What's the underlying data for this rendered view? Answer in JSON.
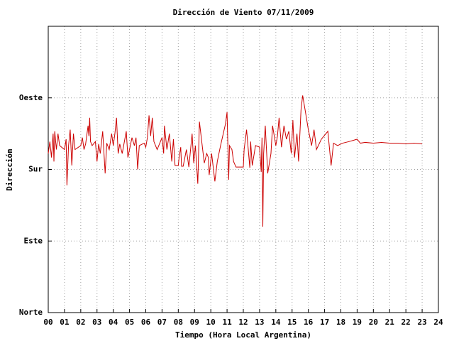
{
  "chart_data": {
    "type": "line",
    "title": "Dirección de Viento 07/11/2009",
    "x_label": "Tiempo (Hora Local Argentina)",
    "y_label": "Dirección",
    "color": "#cc0000",
    "grid": true,
    "xlim": [
      0,
      24
    ],
    "xticks": [
      {
        "value": 0,
        "label": "00"
      },
      {
        "value": 1,
        "label": "01"
      },
      {
        "value": 2,
        "label": "02"
      },
      {
        "value": 3,
        "label": "03"
      },
      {
        "value": 4,
        "label": "04"
      },
      {
        "value": 5,
        "label": "05"
      },
      {
        "value": 6,
        "label": "06"
      },
      {
        "value": 7,
        "label": "07"
      },
      {
        "value": 8,
        "label": "08"
      },
      {
        "value": 9,
        "label": "09"
      },
      10,
      11,
      12,
      13,
      14,
      15,
      16,
      17,
      18,
      19,
      20,
      21,
      22,
      23,
      24
    ],
    "ylim": [
      0,
      360
    ],
    "yticks": [
      {
        "value": 0,
        "label": "Norte"
      },
      {
        "value": 90,
        "label": "Este"
      },
      {
        "value": 180,
        "label": "Sur"
      },
      {
        "value": 270,
        "label": "Oeste"
      }
    ],
    "x": [
      0.0,
      0.1,
      0.2,
      0.3,
      0.35,
      0.4,
      0.5,
      0.6,
      0.7,
      1.0,
      1.1,
      1.15,
      1.25,
      1.35,
      1.45,
      1.55,
      1.65,
      2.0,
      2.1,
      2.2,
      2.3,
      2.45,
      2.5,
      2.55,
      2.6,
      2.7,
      2.9,
      3.0,
      3.1,
      3.2,
      3.35,
      3.5,
      3.6,
      3.75,
      3.9,
      4.0,
      4.1,
      4.2,
      4.3,
      4.4,
      4.55,
      4.8,
      4.9,
      5.0,
      5.15,
      5.3,
      5.4,
      5.5,
      5.6,
      5.9,
      6.0,
      6.1,
      6.2,
      6.3,
      6.4,
      6.5,
      6.7,
      6.9,
      7.0,
      7.1,
      7.15,
      7.3,
      7.45,
      7.6,
      7.7,
      7.8,
      8.0,
      8.05,
      8.15,
      8.2,
      8.3,
      8.5,
      8.65,
      8.85,
      8.95,
      9.05,
      9.2,
      9.3,
      9.5,
      9.6,
      9.75,
      9.85,
      9.9,
      10.05,
      10.25,
      10.4,
      10.6,
      10.9,
      11.0,
      11.1,
      11.15,
      11.3,
      11.4,
      11.55,
      11.8,
      12.0,
      12.05,
      12.2,
      12.4,
      12.45,
      12.55,
      12.75,
      13.0,
      13.1,
      13.15,
      13.2,
      13.25,
      13.35,
      13.5,
      13.7,
      13.8,
      14.0,
      14.1,
      14.2,
      14.35,
      14.5,
      14.65,
      14.8,
      14.95,
      15.05,
      15.15,
      15.3,
      15.4,
      15.55,
      15.65,
      15.8,
      16.0,
      16.2,
      16.35,
      16.5,
      16.8,
      17.2,
      17.4,
      17.55,
      17.8,
      18.1,
      18.5,
      19.0,
      19.2,
      19.5,
      20.0,
      20.5,
      21.0,
      21.5,
      22.0,
      22.5,
      23.0
    ],
    "values": [
      200,
      215,
      195,
      225,
      190,
      228,
      205,
      225,
      210,
      205,
      218,
      160,
      210,
      230,
      185,
      225,
      205,
      210,
      220,
      205,
      212,
      235,
      222,
      245,
      215,
      210,
      215,
      190,
      212,
      200,
      228,
      175,
      213,
      205,
      225,
      210,
      225,
      245,
      200,
      212,
      200,
      228,
      195,
      205,
      220,
      210,
      220,
      180,
      210,
      213,
      208,
      220,
      248,
      222,
      245,
      215,
      205,
      215,
      220,
      200,
      235,
      205,
      225,
      190,
      218,
      185,
      185,
      195,
      208,
      184,
      184,
      205,
      183,
      225,
      188,
      210,
      162,
      240,
      205,
      188,
      200,
      195,
      173,
      200,
      165,
      190,
      210,
      237,
      252,
      167,
      210,
      205,
      190,
      183,
      183,
      183,
      205,
      230,
      182,
      215,
      185,
      210,
      208,
      177,
      220,
      108,
      200,
      235,
      175,
      200,
      235,
      210,
      222,
      245,
      208,
      235,
      218,
      228,
      200,
      242,
      195,
      225,
      190,
      255,
      273,
      255,
      230,
      210,
      230,
      205,
      218,
      228,
      185,
      213,
      210,
      213,
      215,
      218,
      213,
      214,
      213,
      214,
      213,
      213,
      212,
      213,
      212
    ]
  }
}
